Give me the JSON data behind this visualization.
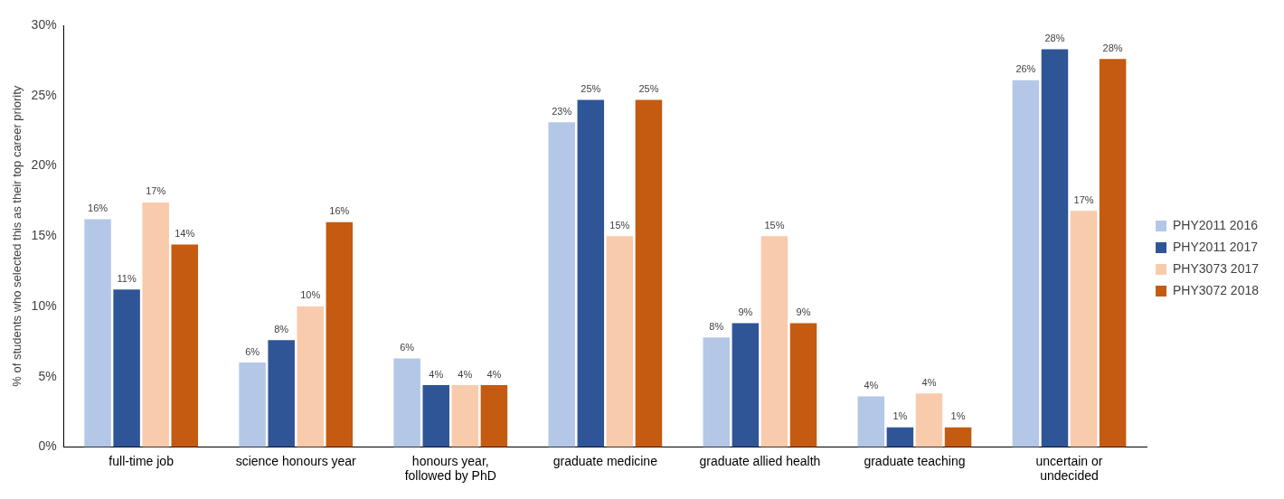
{
  "chart_data": {
    "type": "bar",
    "ylabel": "% of students who selected this as their top career priority",
    "categories": [
      "full-time job",
      "science honours year",
      "honours year,\nfollowed by PhD",
      "graduate medicine",
      "graduate allied health",
      "graduate teaching",
      "uncertain or\nundecided"
    ],
    "series": [
      {
        "name": "PHY2011 2016",
        "color": "#b4c7e7",
        "values": [
          16.2,
          6.0,
          6.3,
          23.1,
          7.8,
          3.6,
          26.1
        ],
        "value_labels": [
          "16%",
          "6%",
          "6%",
          "23%",
          "8%",
          "4%",
          "26%"
        ]
      },
      {
        "name": "PHY2011 2017",
        "color": "#2f5597",
        "values": [
          11.2,
          7.6,
          4.4,
          24.7,
          8.8,
          1.4,
          28.3
        ],
        "value_labels": [
          "11%",
          "8%",
          "4%",
          "25%",
          "9%",
          "1%",
          "28%"
        ]
      },
      {
        "name": "PHY3073 2017",
        "color": "#f8cbad",
        "values": [
          17.4,
          10.0,
          4.4,
          15.0,
          15.0,
          3.8,
          16.8
        ],
        "value_labels": [
          "17%",
          "10%",
          "4%",
          "15%",
          "15%",
          "4%",
          "17%"
        ]
      },
      {
        "name": "PHY3072 2018",
        "color": "#c55a11",
        "values": [
          14.4,
          16.0,
          4.4,
          24.7,
          8.8,
          1.4,
          27.6
        ],
        "value_labels": [
          "14%",
          "16%",
          "4%",
          "25%",
          "9%",
          "1%",
          "28%"
        ]
      }
    ],
    "ylim": [
      0,
      30
    ],
    "yticks": [
      {
        "value": 0,
        "label": "0%"
      },
      {
        "value": 5,
        "label": "5%"
      },
      {
        "value": 10,
        "label": "10%"
      },
      {
        "value": 15,
        "label": "15%"
      },
      {
        "value": 20,
        "label": "20%"
      },
      {
        "value": 25,
        "label": "25%"
      },
      {
        "value": 30,
        "label": "30%"
      }
    ],
    "grid": false,
    "legend": "right"
  }
}
